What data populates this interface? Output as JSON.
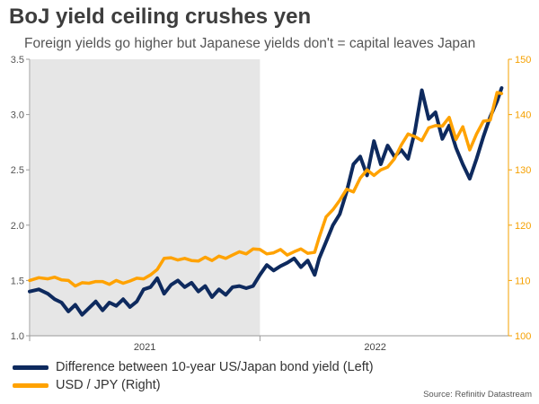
{
  "title": "BoJ yield ceiling crushes yen",
  "subtitle": "Foreign yields go higher but Japanese yields don't = capital leaves Japan",
  "source": "Source: Refinitiv Datastream",
  "colors": {
    "navy": "#0e2a5e",
    "orange": "#ffa200",
    "shade": "#e6e6e6",
    "orangeAxis": "#f5a000"
  },
  "chart_data": {
    "type": "line",
    "title": "BoJ yield ceiling crushes yen",
    "x_tick_labels": [
      "2021",
      "2022"
    ],
    "y_left": {
      "label": "Difference between 10-year US/Japan bond yield (Left)",
      "range": [
        1.0,
        3.5
      ],
      "ticks": [
        "1.0",
        "1.5",
        "2.0",
        "2.5",
        "3.0",
        "3.5"
      ]
    },
    "y_right": {
      "label": "USD / JPY (Right)",
      "range": [
        100,
        150
      ],
      "ticks": [
        "100",
        "110",
        "120",
        "130",
        "140",
        "150"
      ]
    },
    "shaded_period": {
      "from": "2021-01",
      "to": "2021-12"
    },
    "time_index": {
      "start": 2020.92,
      "end": 2022.99
    },
    "series": [
      {
        "name": "Difference between 10-year US/Japan bond yield (Left)",
        "axis": "left",
        "points": [
          [
            2020.92,
            1.4
          ],
          [
            2020.96,
            1.42
          ],
          [
            2021.0,
            1.38
          ],
          [
            2021.03,
            1.33
          ],
          [
            2021.06,
            1.3
          ],
          [
            2021.09,
            1.22
          ],
          [
            2021.12,
            1.28
          ],
          [
            2021.15,
            1.19
          ],
          [
            2021.18,
            1.25
          ],
          [
            2021.21,
            1.31
          ],
          [
            2021.24,
            1.23
          ],
          [
            2021.27,
            1.3
          ],
          [
            2021.3,
            1.27
          ],
          [
            2021.33,
            1.33
          ],
          [
            2021.36,
            1.26
          ],
          [
            2021.39,
            1.31
          ],
          [
            2021.42,
            1.42
          ],
          [
            2021.45,
            1.44
          ],
          [
            2021.48,
            1.52
          ],
          [
            2021.51,
            1.38
          ],
          [
            2021.54,
            1.46
          ],
          [
            2021.57,
            1.5
          ],
          [
            2021.6,
            1.44
          ],
          [
            2021.63,
            1.48
          ],
          [
            2021.66,
            1.4
          ],
          [
            2021.69,
            1.45
          ],
          [
            2021.72,
            1.35
          ],
          [
            2021.75,
            1.42
          ],
          [
            2021.78,
            1.37
          ],
          [
            2021.81,
            1.44
          ],
          [
            2021.84,
            1.45
          ],
          [
            2021.87,
            1.43
          ],
          [
            2021.9,
            1.45
          ],
          [
            2021.93,
            1.55
          ],
          [
            2021.96,
            1.64
          ],
          [
            2021.99,
            1.59
          ],
          [
            2022.02,
            1.63
          ],
          [
            2022.05,
            1.66
          ],
          [
            2022.08,
            1.7
          ],
          [
            2022.11,
            1.62
          ],
          [
            2022.14,
            1.68
          ],
          [
            2022.17,
            1.55
          ],
          [
            2022.19,
            1.7
          ],
          [
            2022.22,
            1.85
          ],
          [
            2022.25,
            2.0
          ],
          [
            2022.28,
            2.1
          ],
          [
            2022.31,
            2.3
          ],
          [
            2022.34,
            2.55
          ],
          [
            2022.37,
            2.62
          ],
          [
            2022.4,
            2.45
          ],
          [
            2022.43,
            2.76
          ],
          [
            2022.46,
            2.55
          ],
          [
            2022.49,
            2.72
          ],
          [
            2022.52,
            2.62
          ],
          [
            2022.55,
            2.68
          ],
          [
            2022.58,
            2.6
          ],
          [
            2022.61,
            2.85
          ],
          [
            2022.64,
            3.22
          ],
          [
            2022.67,
            2.96
          ],
          [
            2022.7,
            3.02
          ],
          [
            2022.73,
            2.78
          ],
          [
            2022.76,
            2.9
          ],
          [
            2022.79,
            2.7
          ],
          [
            2022.82,
            2.55
          ],
          [
            2022.85,
            2.42
          ],
          [
            2022.88,
            2.6
          ],
          [
            2022.91,
            2.8
          ],
          [
            2022.94,
            2.98
          ],
          [
            2022.97,
            3.12
          ],
          [
            2022.99,
            3.24
          ]
        ]
      },
      {
        "name": "USD / JPY (Right)",
        "axis": "right",
        "points": [
          [
            2020.92,
            110.0
          ],
          [
            2020.96,
            110.5
          ],
          [
            2021.0,
            110.3
          ],
          [
            2021.03,
            110.6
          ],
          [
            2021.06,
            110.1
          ],
          [
            2021.09,
            110.0
          ],
          [
            2021.12,
            109.0
          ],
          [
            2021.15,
            109.6
          ],
          [
            2021.18,
            109.5
          ],
          [
            2021.21,
            109.8
          ],
          [
            2021.24,
            109.8
          ],
          [
            2021.27,
            109.3
          ],
          [
            2021.3,
            110.0
          ],
          [
            2021.33,
            109.5
          ],
          [
            2021.36,
            109.9
          ],
          [
            2021.39,
            110.4
          ],
          [
            2021.42,
            110.3
          ],
          [
            2021.45,
            111.0
          ],
          [
            2021.48,
            112.0
          ],
          [
            2021.51,
            114.0
          ],
          [
            2021.54,
            114.1
          ],
          [
            2021.57,
            113.7
          ],
          [
            2021.6,
            114.0
          ],
          [
            2021.63,
            113.6
          ],
          [
            2021.66,
            113.5
          ],
          [
            2021.69,
            114.2
          ],
          [
            2021.72,
            113.6
          ],
          [
            2021.75,
            114.4
          ],
          [
            2021.78,
            114.0
          ],
          [
            2021.81,
            114.6
          ],
          [
            2021.84,
            115.2
          ],
          [
            2021.87,
            114.8
          ],
          [
            2021.9,
            115.7
          ],
          [
            2021.93,
            115.6
          ],
          [
            2021.96,
            114.8
          ],
          [
            2021.99,
            115.0
          ],
          [
            2022.02,
            115.6
          ],
          [
            2022.05,
            114.6
          ],
          [
            2022.08,
            115.2
          ],
          [
            2022.11,
            115.7
          ],
          [
            2022.14,
            114.9
          ],
          [
            2022.17,
            115.1
          ],
          [
            2022.19,
            117.8
          ],
          [
            2022.22,
            121.5
          ],
          [
            2022.25,
            122.8
          ],
          [
            2022.28,
            124.5
          ],
          [
            2022.31,
            126.5
          ],
          [
            2022.34,
            126.0
          ],
          [
            2022.37,
            128.5
          ],
          [
            2022.4,
            130.0
          ],
          [
            2022.43,
            129.0
          ],
          [
            2022.46,
            130.0
          ],
          [
            2022.49,
            130.5
          ],
          [
            2022.52,
            132.0
          ],
          [
            2022.55,
            134.5
          ],
          [
            2022.58,
            136.5
          ],
          [
            2022.61,
            136.0
          ],
          [
            2022.64,
            135.3
          ],
          [
            2022.67,
            137.6
          ],
          [
            2022.7,
            138.0
          ],
          [
            2022.73,
            137.9
          ],
          [
            2022.76,
            139.5
          ],
          [
            2022.79,
            135.5
          ],
          [
            2022.82,
            137.8
          ],
          [
            2022.85,
            133.6
          ],
          [
            2022.88,
            136.5
          ],
          [
            2022.91,
            138.8
          ],
          [
            2022.94,
            139.0
          ],
          [
            2022.97,
            144.0
          ],
          [
            2022.99,
            143.8
          ]
        ]
      }
    ]
  }
}
